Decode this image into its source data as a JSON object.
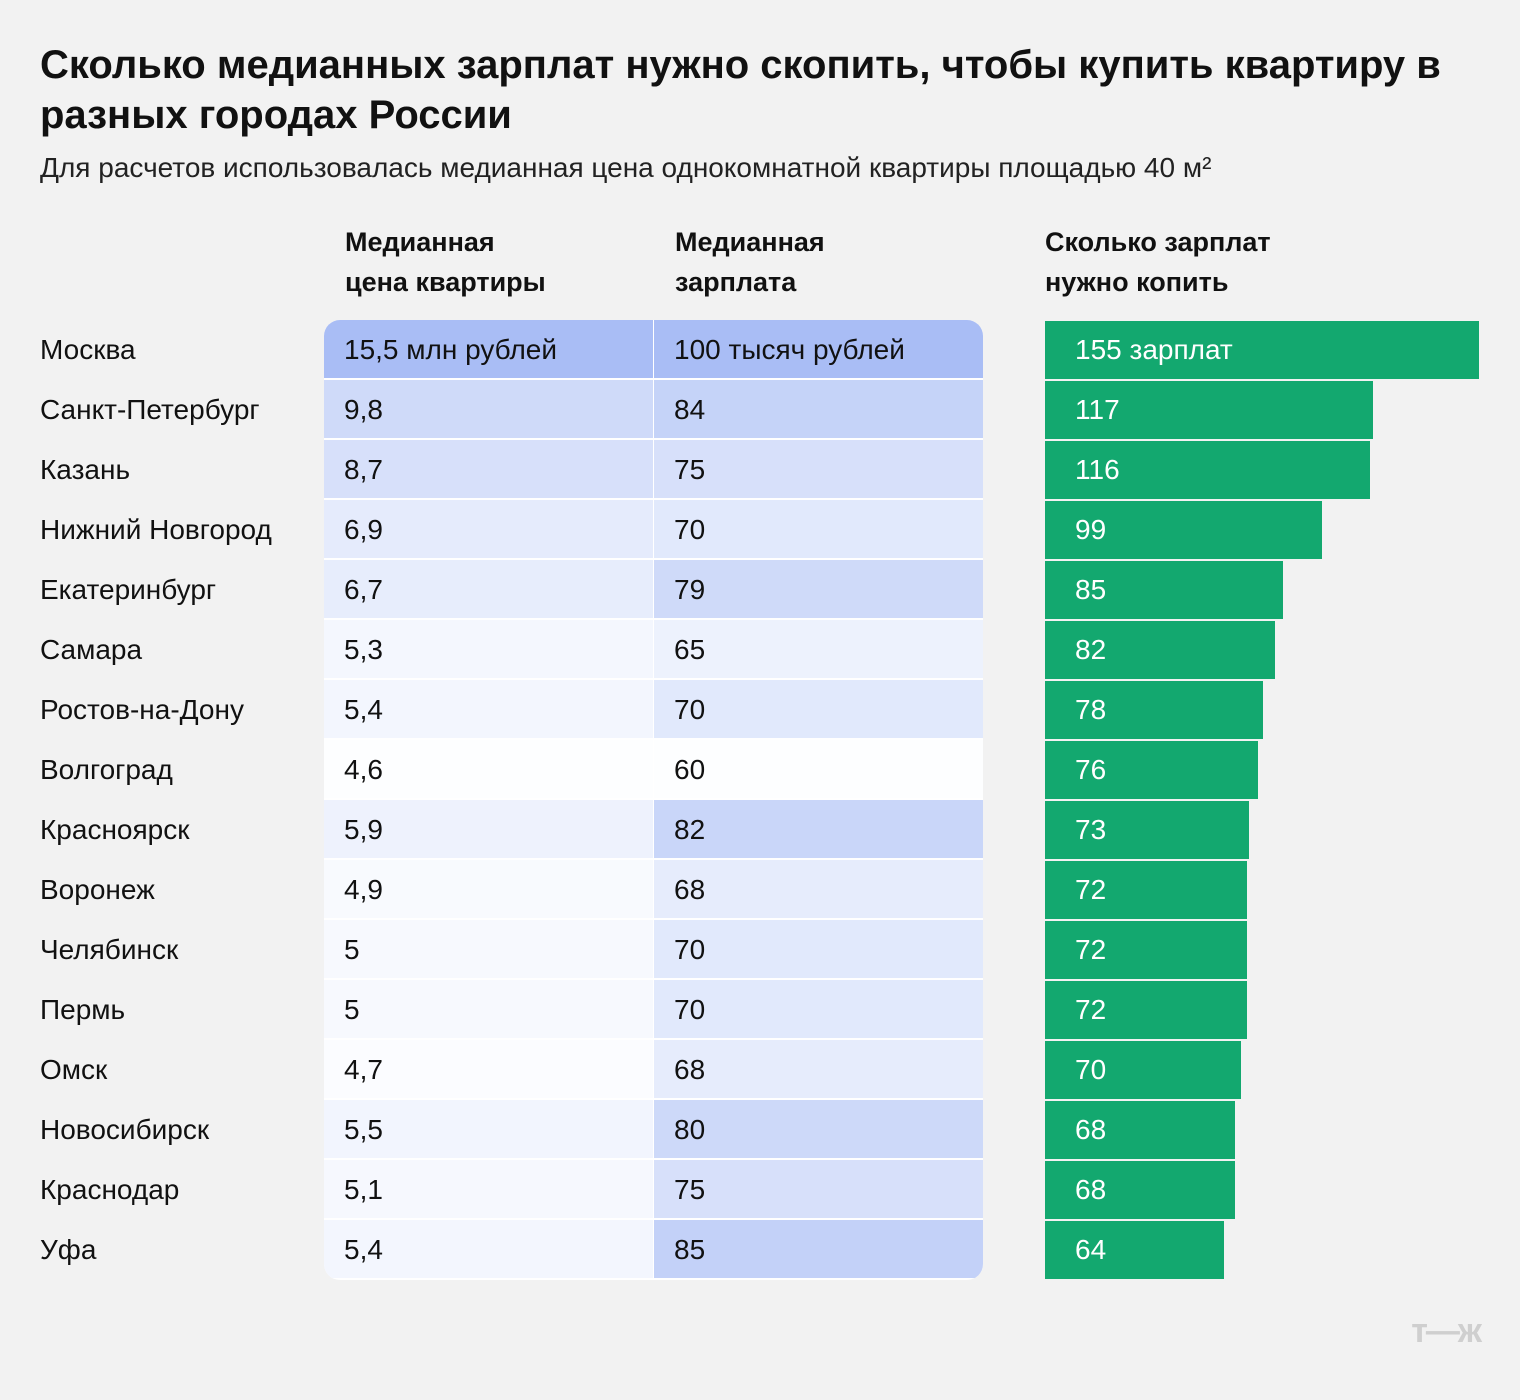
{
  "header": {
    "title": "Сколько медианных зарплат нужно скопить, чтобы купить квартиру в разных городах России",
    "subtitle": "Для расчетов использовалась медианная цена однокомнатной квартиры площадью 40 м²"
  },
  "columns": [
    "Медианная\nцена квартиры",
    "Медианная\nзарплата",
    "Сколько зарплат\nнужно копить"
  ],
  "rows": [
    {
      "city": "Москва",
      "price": "15,5 млн рублей",
      "salary": "100 тысяч рублей",
      "count": {
        "value": 155,
        "label": "155 зарплат"
      }
    },
    {
      "city": "Санкт-Петербург",
      "price": "9,8",
      "salary": "84",
      "count": 117
    },
    {
      "city": "Казань",
      "price": "8,7",
      "salary": "75",
      "count": 116
    },
    {
      "city": "Нижний Новгород",
      "price": "6,9",
      "salary": "70",
      "count": 99
    },
    {
      "city": "Екатеринбург",
      "price": "6,7",
      "salary": "79",
      "count": 85
    },
    {
      "city": "Самара",
      "price": "5,3",
      "salary": "65",
      "count": 82
    },
    {
      "city": "Ростов-на-Дону",
      "price": "5,4",
      "salary": "70",
      "count": 78
    },
    {
      "city": "Волгоград",
      "price": "4,6",
      "salary": "60",
      "count": 76
    },
    {
      "city": "Красноярск",
      "price": "5,9",
      "salary": "82",
      "count": 73
    },
    {
      "city": "Воронеж",
      "price": "4,9",
      "salary": "68",
      "count": 72
    },
    {
      "city": "Челябинск",
      "price": "5",
      "salary": "70",
      "count": 72
    },
    {
      "city": "Пермь",
      "price": "5",
      "salary": "70",
      "count": 72
    },
    {
      "city": "Омск",
      "price": "4,7",
      "salary": "68",
      "count": 70
    },
    {
      "city": "Новосибирск",
      "price": "5,5",
      "salary": "80",
      "count": 68
    },
    {
      "city": "Краснодар",
      "price": "5,1",
      "salary": "75",
      "count": 68
    },
    {
      "city": "Уфа",
      "price": "5,4",
      "salary": "85",
      "count": 64
    }
  ],
  "logo": "т—ж"
}
